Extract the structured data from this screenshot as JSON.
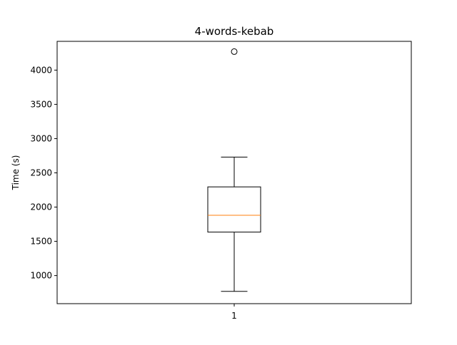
{
  "chart_data": {
    "type": "box",
    "title": "4-words-kebab",
    "xlabel": "",
    "ylabel": "Time (s)",
    "categories": [
      "1"
    ],
    "ylim": [
      590,
      4420
    ],
    "yticks": [
      1000,
      1500,
      2000,
      2500,
      3000,
      3500,
      4000
    ],
    "ytick_labels": [
      "1000",
      "1500",
      "2000",
      "2500",
      "3000",
      "3500",
      "4000"
    ],
    "boxes": [
      {
        "category": "1",
        "whisker_low": 770,
        "q1": 1635,
        "median": 1880,
        "q3": 2295,
        "whisker_high": 2730,
        "outliers": [
          4270
        ]
      }
    ],
    "grid": false,
    "colors": {
      "box": "#000000",
      "median": "#ff7f0e",
      "outlier": "#000000"
    }
  }
}
